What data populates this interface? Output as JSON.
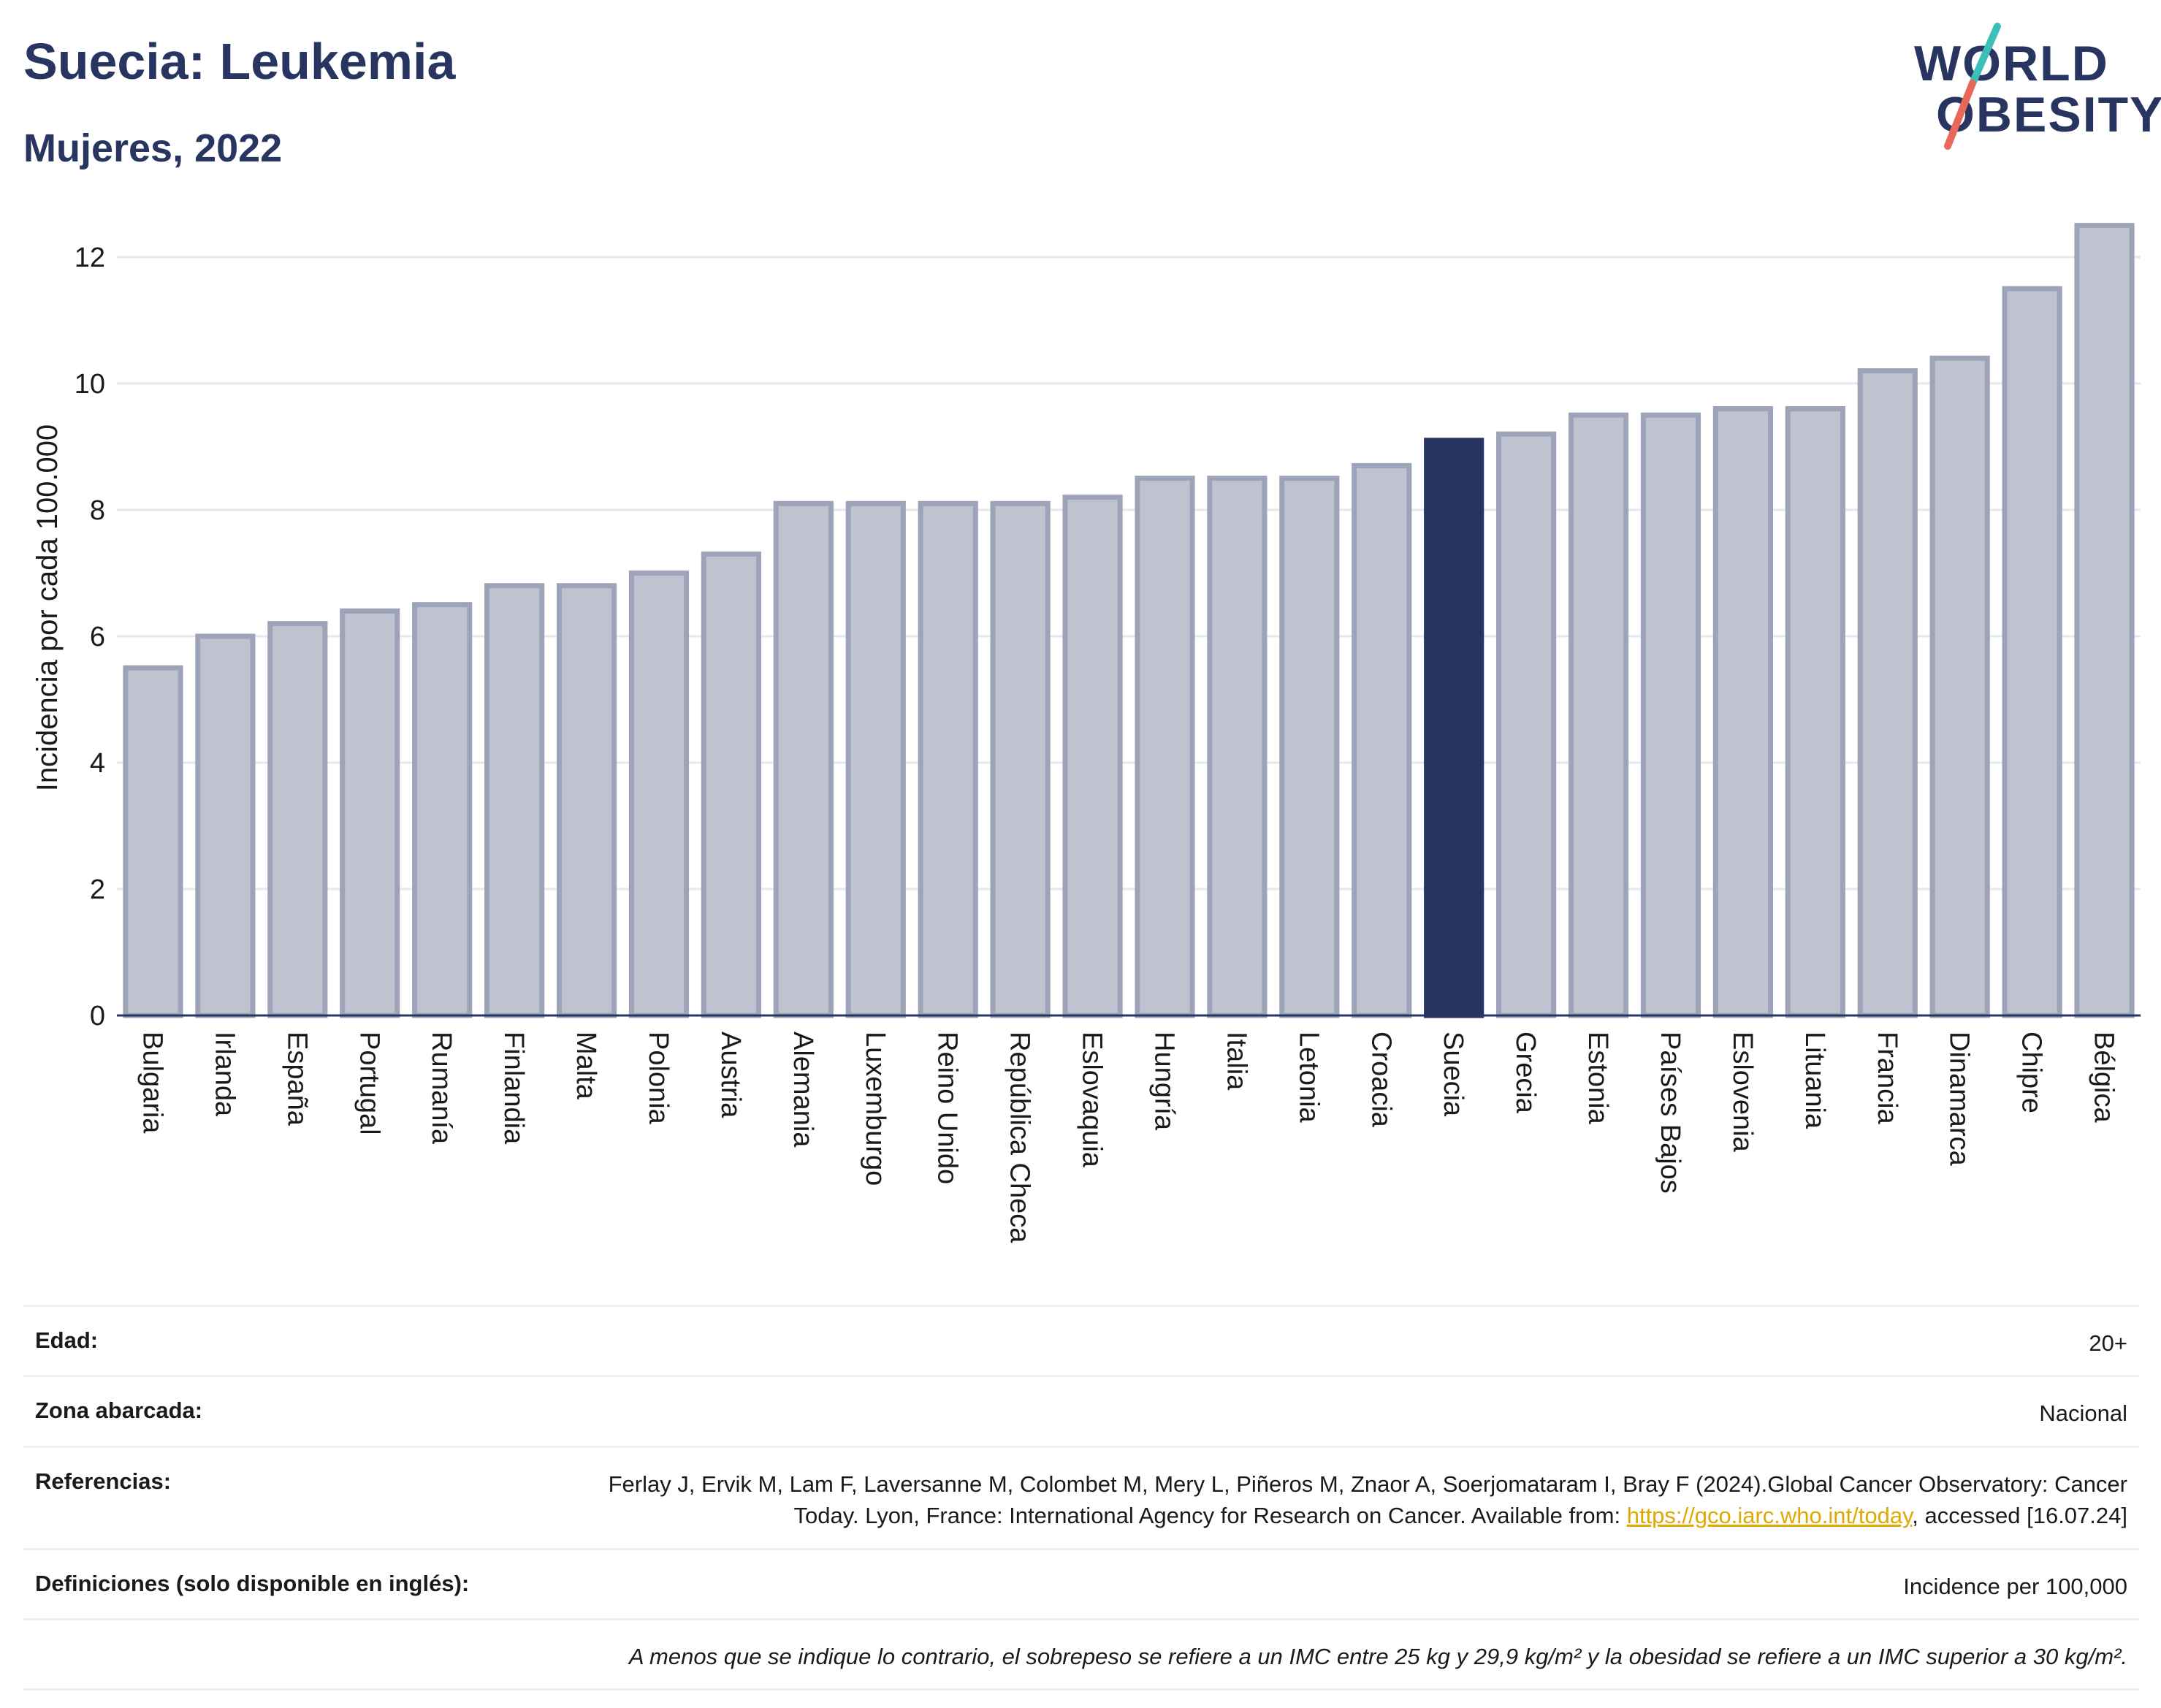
{
  "header": {
    "title": "Suecia: Leukemia",
    "subtitle": "Mujeres, 2022"
  },
  "logo": {
    "line1": "WORLD",
    "line2": "OBESITY",
    "colors": {
      "navy": "#283560",
      "teal": "#3cbfb8",
      "coral": "#e8685a"
    }
  },
  "chart_data": {
    "type": "bar",
    "title": "",
    "xlabel": "",
    "ylabel": "Incidencia por cada 100.000",
    "ylim": [
      0,
      12.6
    ],
    "yticks": [
      0,
      2,
      4,
      6,
      8,
      10,
      12
    ],
    "grid": true,
    "highlight": "Suecia",
    "colors": {
      "bar": "#bfc3d0",
      "bar_border": "#9da3b9",
      "highlight": "#283560"
    },
    "categories": [
      "Bulgaria",
      "Irlanda",
      "España",
      "Portugal",
      "Rumanía",
      "Finlandia",
      "Malta",
      "Polonia",
      "Austria",
      "Alemania",
      "Luxemburgo",
      "Reino Unido",
      "República Checa",
      "Eslovaquia",
      "Hungría",
      "Italia",
      "Letonia",
      "Croacia",
      "Suecia",
      "Grecia",
      "Estonia",
      "Países Bajos",
      "Eslovenia",
      "Lituania",
      "Francia",
      "Dinamarca",
      "Chipre",
      "Bélgica"
    ],
    "values": [
      5.5,
      6.0,
      6.2,
      6.4,
      6.5,
      6.8,
      6.8,
      7.0,
      7.3,
      8.1,
      8.1,
      8.1,
      8.1,
      8.2,
      8.5,
      8.5,
      8.5,
      8.7,
      9.1,
      9.2,
      9.5,
      9.5,
      9.6,
      9.6,
      10.2,
      10.4,
      11.5,
      12.5
    ]
  },
  "info": {
    "age": {
      "label": "Edad:",
      "value": "20+"
    },
    "area": {
      "label": "Zona abarcada:",
      "value": "Nacional"
    },
    "references": {
      "label": "Referencias:",
      "text_before": "Ferlay J, Ervik M, Lam F, Laversanne M, Colombet M, Mery L, Piñeros M, Znaor A, Soerjomataram I, Bray F (2024).Global Cancer Observatory: Cancer Today. Lyon, France: International Agency for Research on Cancer. Available from: ",
      "link": "https://gco.iarc.who.int/today",
      "text_after": ", accessed [16.07.24]"
    },
    "definitions": {
      "label": "Definiciones (solo disponible en inglés):",
      "value": "Incidence per 100,000"
    },
    "note": "A menos que se indique lo contrario, el sobrepeso se refiere a un IMC entre 25 kg y 29,9 kg/m² y la obesidad se refiere a un IMC superior a 30 kg/m²."
  }
}
